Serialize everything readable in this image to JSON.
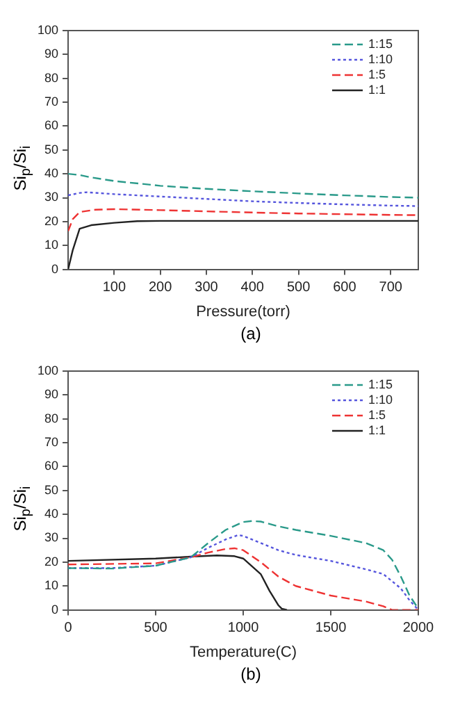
{
  "chart_data": [
    {
      "type": "line",
      "ylabel": "Si$_{p}$/Si$_{i}$",
      "xlabel": "Pressure(torr)",
      "annotations": [
        "(a)"
      ],
      "xlim": [
        0,
        760
      ],
      "xticks": [
        100,
        200,
        300,
        400,
        500,
        600,
        700
      ],
      "ylim": [
        0,
        100
      ],
      "yticks": [
        0,
        10,
        20,
        30,
        40,
        50,
        60,
        70,
        80,
        90,
        100
      ],
      "grid": false,
      "legend": "top right",
      "series": [
        {
          "name": "1:15",
          "color": "#2a9a8a",
          "line_style": "dashed",
          "x": [
            0,
            25,
            50,
            100,
            200,
            300,
            400,
            500,
            600,
            700,
            760
          ],
          "values": [
            40,
            39.5,
            38.5,
            37,
            35,
            33.7,
            32.7,
            31.8,
            31,
            30.3,
            30
          ]
        },
        {
          "name": "1:10",
          "color": "#5555dd",
          "line_style": "dotted",
          "x": [
            0,
            25,
            40,
            100,
            200,
            300,
            400,
            500,
            600,
            700,
            760
          ],
          "values": [
            31,
            32,
            32.3,
            31.5,
            30.5,
            29.5,
            28.5,
            27.8,
            27.2,
            26.7,
            26.5
          ]
        },
        {
          "name": "1:5",
          "color": "#ee3333",
          "line_style": "dashed",
          "x": [
            0,
            10,
            25,
            60,
            100,
            200,
            300,
            400,
            500,
            600,
            700,
            760
          ],
          "values": [
            16,
            21,
            24,
            25,
            25.2,
            24.8,
            24.3,
            23.8,
            23.4,
            23.1,
            22.8,
            22.7
          ]
        },
        {
          "name": "1:1",
          "color": "#222222",
          "line_style": "solid",
          "x": [
            0,
            10,
            25,
            50,
            100,
            150,
            200,
            400,
            760
          ],
          "values": [
            0,
            8,
            17,
            18.5,
            19.5,
            20.2,
            20.3,
            20.3,
            20.3
          ]
        }
      ]
    },
    {
      "type": "line",
      "ylabel": "Si$_{p}$/Si$_{i}$",
      "xlabel": "Temperature(C)",
      "annotations": [
        "(b)"
      ],
      "xlim": [
        0,
        2000
      ],
      "xticks": [
        0,
        500,
        1000,
        1500,
        2000
      ],
      "ylim": [
        0,
        100
      ],
      "yticks": [
        0,
        10,
        20,
        30,
        40,
        50,
        60,
        70,
        80,
        90,
        100
      ],
      "grid": false,
      "legend": "top right",
      "series": [
        {
          "name": "1:15",
          "color": "#2a9a8a",
          "line_style": "dashed",
          "x": [
            0,
            250,
            500,
            700,
            800,
            900,
            1000,
            1050,
            1100,
            1200,
            1300,
            1500,
            1700,
            1800,
            1850,
            1900,
            1950,
            2000
          ],
          "values": [
            17.5,
            17.3,
            18.5,
            22,
            28,
            33.5,
            36.8,
            37.2,
            37,
            35,
            33.5,
            31,
            28,
            25,
            21,
            14,
            6,
            0.5
          ]
        },
        {
          "name": "1:10",
          "color": "#5555dd",
          "line_style": "dotted",
          "x": [
            0,
            250,
            500,
            700,
            800,
            900,
            970,
            1000,
            1100,
            1200,
            1300,
            1500,
            1700,
            1800,
            1900,
            1950,
            2000
          ],
          "values": [
            17.5,
            17.5,
            18.5,
            22,
            26,
            29.5,
            31.3,
            31,
            28,
            25,
            23,
            20.5,
            17,
            15,
            9,
            4,
            0
          ]
        },
        {
          "name": "1:5",
          "color": "#ee3333",
          "line_style": "dashed",
          "x": [
            0,
            500,
            700,
            800,
            900,
            950,
            1000,
            1100,
            1200,
            1300,
            1400,
            1500,
            1700,
            1800,
            1850,
            2000
          ],
          "values": [
            19,
            19.5,
            22,
            24,
            25.5,
            25.8,
            25,
            20,
            14,
            10,
            8,
            6,
            3.5,
            1.5,
            0,
            0
          ]
        },
        {
          "name": "1:1",
          "color": "#222222",
          "line_style": "solid",
          "x": [
            0,
            500,
            700,
            850,
            950,
            1000,
            1100,
            1150,
            1200,
            1220,
            1250
          ],
          "values": [
            20.5,
            21.5,
            22.3,
            22.8,
            22.5,
            21.5,
            15,
            8,
            2,
            0.5,
            0
          ]
        }
      ]
    }
  ]
}
